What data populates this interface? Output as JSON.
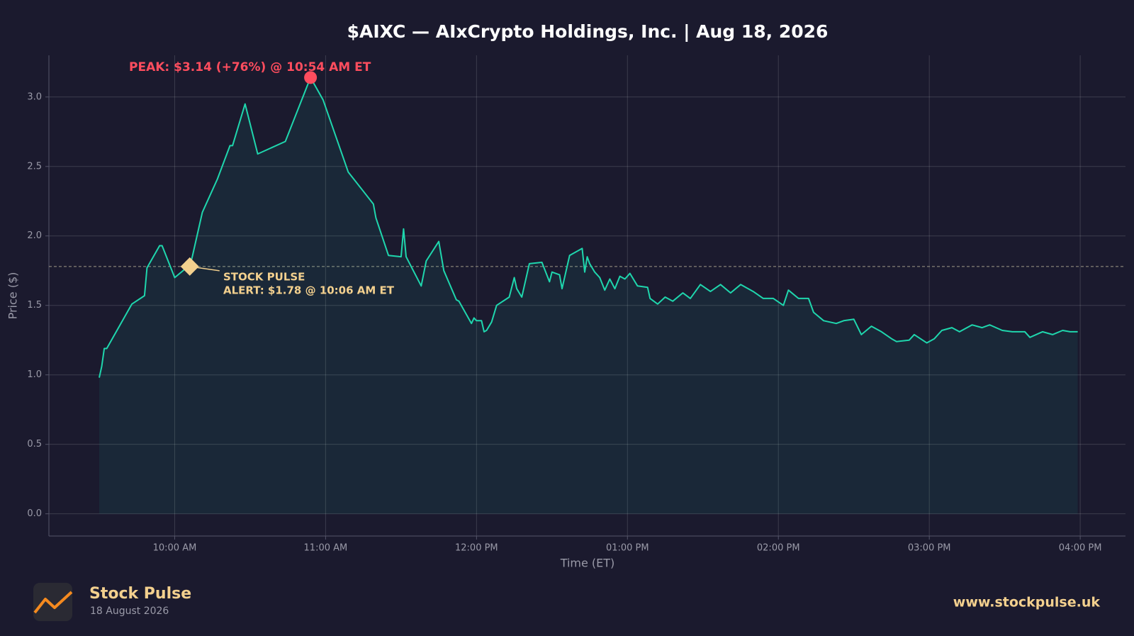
{
  "chart_data": {
    "type": "line",
    "title": "$AIXC — AIxCrypto Holdings, Inc.  |  Aug 18, 2026",
    "xlabel": "Time (ET)",
    "ylabel": "Price ($)",
    "color": "#1fd6ad",
    "grid": true,
    "x": [
      "09:30",
      "09:31",
      "09:32",
      "09:33",
      "09:43",
      "09:48",
      "09:49",
      "09:54",
      "09:55",
      "10:00",
      "10:04",
      "10:06",
      "10:07",
      "10:11",
      "10:17",
      "10:22",
      "10:23",
      "10:28",
      "10:33",
      "10:44",
      "10:54",
      "10:59",
      "11:09",
      "11:19",
      "11:20",
      "11:25",
      "11:30",
      "11:31",
      "11:32",
      "11:38",
      "11:40",
      "11:45",
      "11:47",
      "11:52",
      "11:53",
      "11:58",
      "11:59",
      "12:00",
      "12:02",
      "12:03",
      "12:04",
      "12:06",
      "12:08",
      "12:13",
      "12:15",
      "12:16",
      "12:18",
      "12:21",
      "12:26",
      "12:29",
      "12:30",
      "12:33",
      "12:34",
      "12:37",
      "12:42",
      "12:43",
      "12:44",
      "12:45",
      "12:47",
      "12:49",
      "12:51",
      "12:53",
      "12:55",
      "12:57",
      "12:59",
      "13:01",
      "13:04",
      "13:08",
      "13:09",
      "13:12",
      "13:15",
      "13:18",
      "13:22",
      "13:25",
      "13:29",
      "13:33",
      "13:37",
      "13:41",
      "13:45",
      "13:50",
      "13:54",
      "13:58",
      "14:02",
      "14:04",
      "14:08",
      "14:12",
      "14:14",
      "14:18",
      "14:23",
      "14:26",
      "14:30",
      "14:33",
      "14:37",
      "14:41",
      "14:45",
      "14:47",
      "14:52",
      "14:54",
      "14:59",
      "15:02",
      "15:05",
      "15:09",
      "15:12",
      "15:17",
      "15:21",
      "15:24",
      "15:29",
      "15:33",
      "15:38",
      "15:40",
      "15:45",
      "15:49",
      "15:53",
      "15:56",
      "15:59"
    ],
    "values": [
      0.98,
      1.06,
      1.19,
      1.19,
      1.51,
      1.57,
      1.77,
      1.93,
      1.93,
      1.7,
      1.76,
      1.78,
      1.85,
      2.17,
      2.41,
      2.65,
      2.65,
      2.95,
      2.59,
      2.68,
      3.14,
      2.98,
      2.46,
      2.23,
      2.13,
      1.86,
      1.85,
      2.05,
      1.85,
      1.64,
      1.82,
      1.96,
      1.75,
      1.54,
      1.53,
      1.37,
      1.41,
      1.39,
      1.39,
      1.31,
      1.32,
      1.38,
      1.5,
      1.56,
      1.7,
      1.62,
      1.56,
      1.8,
      1.81,
      1.67,
      1.74,
      1.72,
      1.62,
      1.86,
      1.91,
      1.74,
      1.85,
      1.8,
      1.74,
      1.7,
      1.61,
      1.69,
      1.62,
      1.71,
      1.69,
      1.73,
      1.64,
      1.63,
      1.55,
      1.51,
      1.56,
      1.53,
      1.59,
      1.55,
      1.65,
      1.6,
      1.65,
      1.59,
      1.65,
      1.6,
      1.55,
      1.55,
      1.5,
      1.61,
      1.55,
      1.55,
      1.45,
      1.39,
      1.37,
      1.39,
      1.4,
      1.29,
      1.35,
      1.31,
      1.26,
      1.24,
      1.25,
      1.29,
      1.23,
      1.26,
      1.32,
      1.34,
      1.31,
      1.36,
      1.34,
      1.36,
      1.32,
      1.31,
      1.31,
      1.27,
      1.31,
      1.29,
      1.32,
      1.31,
      1.31
    ],
    "xlim": [
      "09:10",
      "16:18"
    ],
    "xticks": [
      {
        "value": "10:00",
        "label": "10:00 AM"
      },
      {
        "value": "11:00",
        "label": "11:00 AM"
      },
      {
        "value": "12:00",
        "label": "12:00 PM"
      },
      {
        "value": "13:00",
        "label": "01:00 PM"
      },
      {
        "value": "14:00",
        "label": "02:00 PM"
      },
      {
        "value": "15:00",
        "label": "03:00 PM"
      },
      {
        "value": "16:00",
        "label": "04:00 PM"
      }
    ],
    "ylim": [
      -0.16,
      3.3
    ],
    "yticks": [
      {
        "value": 0,
        "label": "0.0"
      },
      0.5,
      {
        "value": 1,
        "label": "1.0"
      },
      1.5,
      {
        "value": 2,
        "label": "2.0"
      },
      2.5,
      {
        "value": 3,
        "label": "3.0"
      }
    ],
    "peak": {
      "text": "PEAK: $3.14 (+76%) @ 10:54 AM ET",
      "x": "10:54",
      "y": 3.14,
      "color": "#ff4d5e"
    },
    "alert": {
      "lines": [
        "STOCK PULSE",
        "ALERT: $1.78 @ 10:06 AM ET"
      ],
      "x": "10:06",
      "y": 1.78,
      "color": "#f3d08e"
    }
  },
  "footer": {
    "brand": "Stock Pulse",
    "date": "18 August 2026",
    "url": "www.stockpulse.uk"
  }
}
